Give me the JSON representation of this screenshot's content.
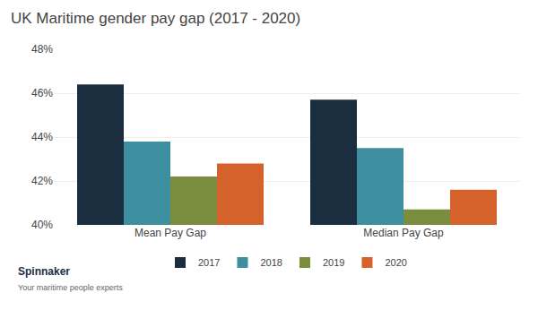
{
  "chart_data": {
    "type": "bar",
    "title": "UK Maritime gender pay gap (2017 - 2020)",
    "categories": [
      "Mean Pay Gap",
      "Median Pay Gap"
    ],
    "series": [
      {
        "name": "2017",
        "color": "#1b2e40",
        "values": [
          46.4,
          45.7
        ]
      },
      {
        "name": "2018",
        "color": "#3d8fa0",
        "values": [
          43.8,
          43.5
        ]
      },
      {
        "name": "2019",
        "color": "#7a8c3e",
        "values": [
          42.2,
          40.7
        ]
      },
      {
        "name": "2020",
        "color": "#d4622a",
        "values": [
          42.8,
          41.6
        ]
      }
    ],
    "ylim": [
      40,
      48
    ],
    "yticks": [
      {
        "value": 40,
        "label": "40%"
      },
      {
        "value": 42,
        "label": "42%"
      },
      {
        "value": 44,
        "label": "44%"
      },
      {
        "value": 46,
        "label": "46%"
      },
      {
        "value": 48,
        "label": "48%"
      }
    ],
    "grid": true,
    "legend": "bottom",
    "annotations": [
      "Spinnaker",
      "Your maritime people experts"
    ]
  }
}
